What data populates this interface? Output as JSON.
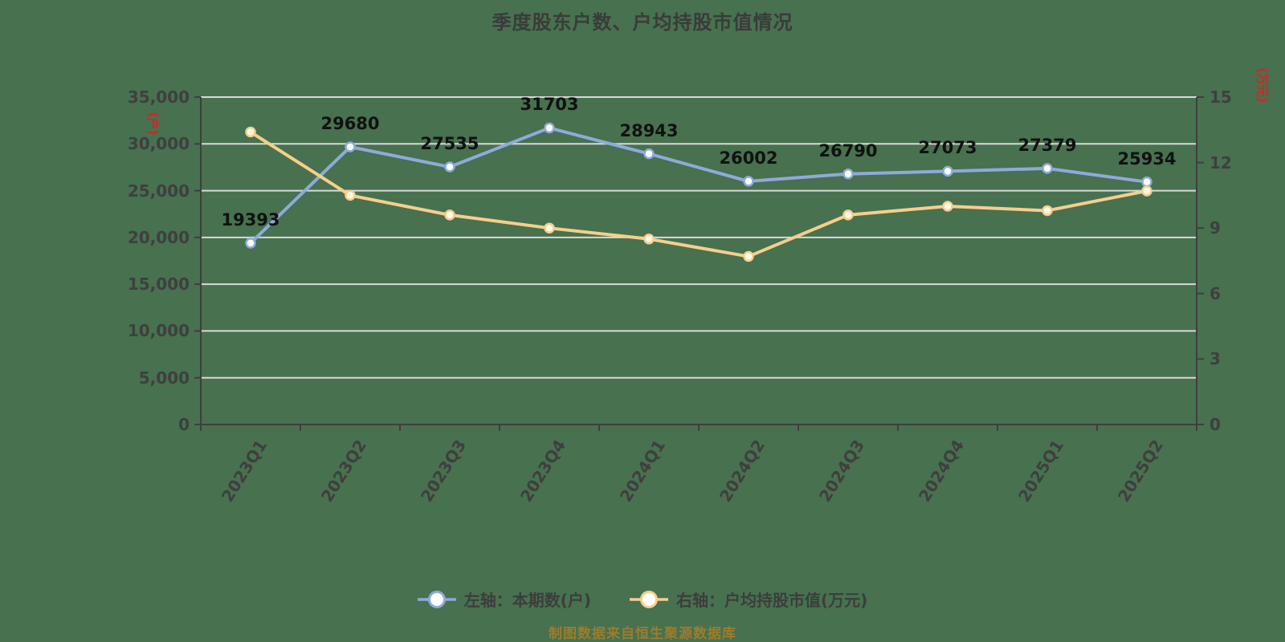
{
  "title": "季度股东户数、户均持股市值情况",
  "footer": "制图数据来自恒生聚源数据库",
  "left_axis": {
    "unit": "(户)",
    "min": 0,
    "max": 35000,
    "ticks": [
      {
        "label": "0",
        "value": 0
      },
      {
        "label": "5,000",
        "value": 5000
      },
      {
        "label": "10,000",
        "value": 10000
      },
      {
        "label": "15,000",
        "value": 15000
      },
      {
        "label": "20,000",
        "value": 20000
      },
      {
        "label": "25,000",
        "value": 25000
      },
      {
        "label": "30,000",
        "value": 30000
      },
      {
        "label": "35,000",
        "value": 35000
      }
    ]
  },
  "right_axis": {
    "unit": "(万元)",
    "min": 0,
    "max": 15,
    "ticks": [
      {
        "label": "0",
        "value": 0
      },
      {
        "label": "3",
        "value": 3
      },
      {
        "label": "6",
        "value": 6
      },
      {
        "label": "9",
        "value": 9
      },
      {
        "label": "12",
        "value": 12
      },
      {
        "label": "15",
        "value": 15
      }
    ]
  },
  "legend": [
    {
      "label": "左轴：本期数(户)",
      "color": "#8EAADB",
      "marker_fill": "#FFFFFF"
    },
    {
      "label": "右轴：户均持股市值(万元)",
      "color": "#F7CE8C",
      "marker_fill": "#FFF9EA"
    }
  ],
  "chart_data": {
    "type": "line",
    "title": "季度股东户数、户均持股市值情况",
    "categories": [
      "2023Q1",
      "2023Q2",
      "2023Q3",
      "2023Q4",
      "2024Q1",
      "2024Q2",
      "2024Q3",
      "2024Q4",
      "2025Q1",
      "2025Q2"
    ],
    "series": [
      {
        "id": "shareholders-count",
        "name": "左轴：本期数(户)",
        "axis": "left",
        "color": "#8EAADB",
        "marker_fill": "#FFFFFF",
        "values": [
          19393,
          29680,
          27535,
          31703,
          28943,
          26002,
          26790,
          27073,
          27379,
          25934
        ],
        "labels_shown": true
      },
      {
        "id": "avg-holding-market-value",
        "name": "右轴：户均持股市值(万元)",
        "axis": "right",
        "color": "#F7CE8C",
        "marker_fill": "#FFF9EA",
        "values": [
          13.4,
          10.5,
          9.6,
          9.0,
          8.5,
          7.7,
          9.6,
          10.0,
          9.8,
          10.7
        ],
        "labels_shown": false
      }
    ],
    "left_ylim": [
      0,
      35000
    ],
    "right_ylim": [
      0,
      15
    ],
    "grid": "horizontal",
    "legend_position": "bottom"
  },
  "colors": {
    "background": "#47714F",
    "grid": "#D9D9D9",
    "axis": "#3F3F3F",
    "tick_label": "#3F3F3F",
    "data_label": "#111111",
    "unit_label": "#E31E1E",
    "title": "#3B3B3B",
    "legend_label": "#3D3D3D",
    "footer": "#9E7C2B"
  }
}
